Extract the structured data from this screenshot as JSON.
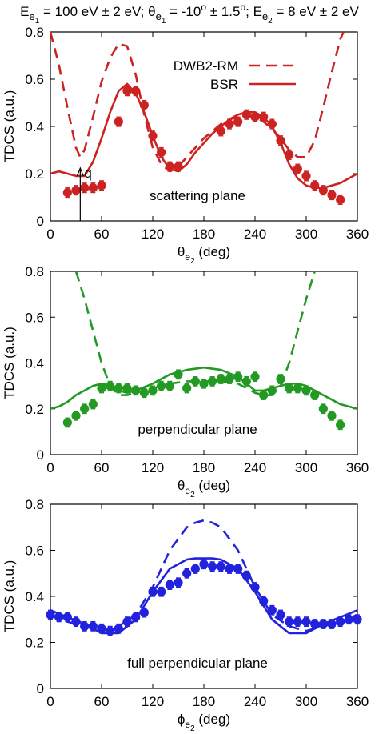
{
  "header": {
    "title_parts": [
      {
        "t": "E"
      },
      {
        "t": "e",
        "sub": true
      },
      {
        "t": "1",
        "subsub": true
      },
      {
        "t": " = 100 eV ± 2 eV; θ"
      },
      {
        "t": "e",
        "sub": true
      },
      {
        "t": "1",
        "subsub": true
      },
      {
        "t": " = -10"
      },
      {
        "t": "o",
        "sup": true
      },
      {
        "t": " ± 1.5"
      },
      {
        "t": "o",
        "sup": true
      },
      {
        "t": "; E"
      },
      {
        "t": "e",
        "sub": true
      },
      {
        "t": "2",
        "subsub": true
      },
      {
        "t": " = 8 eV ± 2 eV"
      }
    ]
  },
  "chart_data": [
    {
      "type": "line",
      "panel": "scattering plane",
      "annotation": "scattering plane",
      "q_label": "q",
      "q_angle": 35,
      "ylabel": "TDCS (a.u.)",
      "xlabel": {
        "main": "θ",
        "sub": "e",
        "subsub": "2",
        "unit": " (deg)"
      },
      "xlim": [
        0,
        360
      ],
      "ylim": [
        0,
        0.8
      ],
      "xticks": [
        0,
        60,
        120,
        180,
        240,
        300,
        360
      ],
      "yticks": [
        0,
        0.2,
        0.4,
        0.6,
        0.8
      ],
      "color": "#cc2222",
      "legend": {
        "placement": "top-right"
      },
      "series": [
        {
          "name": "DWB2-RM",
          "style": "dashed",
          "x": [
            0,
            10,
            20,
            30,
            35,
            40,
            50,
            60,
            70,
            80,
            90,
            100,
            110,
            120,
            130,
            140,
            150,
            160,
            170,
            180,
            190,
            200,
            210,
            220,
            230,
            240,
            250,
            260,
            270,
            280,
            290,
            300,
            310,
            320,
            330,
            340,
            350,
            360
          ],
          "y": [
            0.8,
            0.66,
            0.48,
            0.31,
            0.27,
            0.3,
            0.44,
            0.59,
            0.69,
            0.75,
            0.74,
            0.62,
            0.45,
            0.31,
            0.24,
            0.21,
            0.23,
            0.27,
            0.31,
            0.35,
            0.38,
            0.41,
            0.43,
            0.44,
            0.445,
            0.44,
            0.42,
            0.39,
            0.35,
            0.3,
            0.27,
            0.27,
            0.34,
            0.48,
            0.63,
            0.77,
            0.85,
            0.9
          ]
        },
        {
          "name": "BSR",
          "style": "solid",
          "x": [
            0,
            10,
            20,
            30,
            40,
            50,
            60,
            70,
            80,
            90,
            100,
            110,
            120,
            130,
            140,
            150,
            160,
            170,
            180,
            190,
            200,
            210,
            220,
            230,
            240,
            250,
            260,
            270,
            280,
            290,
            300,
            310,
            320,
            330,
            340,
            350,
            360
          ],
          "y": [
            0.2,
            0.21,
            0.2,
            0.19,
            0.19,
            0.25,
            0.35,
            0.46,
            0.55,
            0.58,
            0.54,
            0.46,
            0.36,
            0.27,
            0.22,
            0.21,
            0.24,
            0.29,
            0.33,
            0.37,
            0.4,
            0.43,
            0.45,
            0.46,
            0.46,
            0.44,
            0.4,
            0.33,
            0.24,
            0.18,
            0.15,
            0.14,
            0.14,
            0.15,
            0.16,
            0.18,
            0.2
          ]
        }
      ],
      "points": {
        "x": [
          20,
          30,
          40,
          50,
          60,
          80,
          90,
          100,
          110,
          120,
          130,
          140,
          150,
          200,
          210,
          220,
          230,
          240,
          250,
          260,
          270,
          280,
          290,
          300,
          310,
          320,
          330,
          340
        ],
        "y": [
          0.12,
          0.13,
          0.14,
          0.14,
          0.15,
          0.42,
          0.55,
          0.55,
          0.49,
          0.36,
          0.29,
          0.23,
          0.23,
          0.38,
          0.41,
          0.42,
          0.45,
          0.44,
          0.44,
          0.41,
          0.34,
          0.28,
          0.22,
          0.19,
          0.15,
          0.13,
          0.11,
          0.09
        ],
        "err": 0.02
      }
    },
    {
      "type": "line",
      "panel": "perpendicular plane",
      "annotation": "perpendicular plane",
      "ylabel": "TDCS (a.u.)",
      "xlabel": {
        "main": "θ",
        "sub": "e",
        "subsub": "2",
        "unit": " (deg)"
      },
      "xlim": [
        0,
        360
      ],
      "ylim": [
        0,
        0.8
      ],
      "xticks": [
        0,
        60,
        120,
        180,
        240,
        300,
        360
      ],
      "yticks": [
        0,
        0.2,
        0.4,
        0.6,
        0.8
      ],
      "color": "#229922",
      "series": [
        {
          "name": "",
          "style": "dashed",
          "x": [
            30,
            40,
            50,
            60,
            70,
            80,
            90,
            100,
            110,
            120,
            140,
            160,
            180,
            200,
            220,
            240,
            250,
            260,
            270,
            280,
            290,
            300,
            310,
            320,
            330
          ],
          "y": [
            0.8,
            0.68,
            0.54,
            0.4,
            0.3,
            0.26,
            0.26,
            0.27,
            0.28,
            0.29,
            0.31,
            0.32,
            0.32,
            0.32,
            0.31,
            0.27,
            0.26,
            0.26,
            0.3,
            0.4,
            0.54,
            0.68,
            0.8,
            0.9,
            1.0
          ]
        },
        {
          "name": "",
          "style": "solid",
          "x": [
            0,
            10,
            20,
            30,
            40,
            50,
            60,
            70,
            80,
            90,
            100,
            120,
            140,
            160,
            180,
            200,
            220,
            230,
            240,
            250,
            260,
            270,
            280,
            290,
            300,
            310,
            320,
            330,
            340,
            350,
            360
          ],
          "y": [
            0.2,
            0.21,
            0.23,
            0.26,
            0.28,
            0.3,
            0.31,
            0.3,
            0.28,
            0.27,
            0.28,
            0.31,
            0.35,
            0.37,
            0.38,
            0.37,
            0.34,
            0.31,
            0.28,
            0.28,
            0.29,
            0.3,
            0.31,
            0.31,
            0.3,
            0.28,
            0.26,
            0.24,
            0.22,
            0.21,
            0.2
          ]
        }
      ],
      "points": {
        "x": [
          20,
          30,
          40,
          50,
          60,
          70,
          80,
          90,
          100,
          110,
          120,
          130,
          140,
          150,
          160,
          170,
          180,
          190,
          200,
          210,
          220,
          230,
          240,
          250,
          260,
          270,
          280,
          290,
          300,
          310,
          320,
          330,
          340
        ],
        "y": [
          0.14,
          0.17,
          0.2,
          0.22,
          0.29,
          0.3,
          0.29,
          0.29,
          0.28,
          0.27,
          0.28,
          0.3,
          0.3,
          0.35,
          0.29,
          0.32,
          0.31,
          0.32,
          0.33,
          0.33,
          0.34,
          0.32,
          0.34,
          0.26,
          0.28,
          0.33,
          0.29,
          0.29,
          0.28,
          0.26,
          0.2,
          0.17,
          0.13
        ],
        "err": 0.02
      }
    },
    {
      "type": "line",
      "panel": "full perpendicular plane",
      "annotation": "full perpendicular plane",
      "ylabel": "TDCS (a.u.)",
      "xlabel": {
        "main": "ϕ",
        "sub": "e",
        "subsub": "2",
        "unit": " (deg)"
      },
      "xlim": [
        0,
        360
      ],
      "ylim": [
        0,
        0.8
      ],
      "xticks": [
        0,
        60,
        120,
        180,
        240,
        300,
        360
      ],
      "yticks": [
        0,
        0.2,
        0.4,
        0.6,
        0.8
      ],
      "color": "#2222dd",
      "series": [
        {
          "name": "",
          "style": "dashed",
          "x": [
            0,
            20,
            40,
            60,
            80,
            100,
            120,
            140,
            160,
            170,
            180,
            190,
            200,
            220,
            240,
            260,
            280,
            300,
            320,
            340,
            360
          ],
          "y": [
            0.32,
            0.29,
            0.27,
            0.25,
            0.27,
            0.32,
            0.44,
            0.6,
            0.7,
            0.72,
            0.73,
            0.72,
            0.7,
            0.6,
            0.44,
            0.32,
            0.27,
            0.25,
            0.27,
            0.29,
            0.32
          ]
        },
        {
          "name": "",
          "style": "solid",
          "x": [
            0,
            20,
            40,
            60,
            80,
            100,
            120,
            140,
            160,
            170,
            180,
            190,
            200,
            220,
            240,
            260,
            280,
            300,
            320,
            340,
            360
          ],
          "y": [
            0.34,
            0.31,
            0.28,
            0.24,
            0.24,
            0.3,
            0.42,
            0.52,
            0.56,
            0.565,
            0.565,
            0.565,
            0.56,
            0.52,
            0.42,
            0.3,
            0.24,
            0.24,
            0.28,
            0.31,
            0.34
          ]
        }
      ],
      "points": {
        "x": [
          0,
          10,
          20,
          30,
          40,
          50,
          60,
          70,
          80,
          90,
          100,
          110,
          120,
          130,
          140,
          150,
          160,
          170,
          180,
          190,
          200,
          210,
          220,
          230,
          240,
          250,
          260,
          270,
          280,
          290,
          300,
          310,
          320,
          330,
          340,
          350,
          360
        ],
        "y": [
          0.32,
          0.31,
          0.31,
          0.29,
          0.27,
          0.27,
          0.26,
          0.25,
          0.26,
          0.29,
          0.31,
          0.33,
          0.42,
          0.42,
          0.45,
          0.46,
          0.5,
          0.52,
          0.54,
          0.53,
          0.53,
          0.52,
          0.52,
          0.49,
          0.44,
          0.38,
          0.34,
          0.32,
          0.29,
          0.29,
          0.29,
          0.28,
          0.28,
          0.28,
          0.29,
          0.3,
          0.3
        ],
        "err": 0.02
      }
    }
  ],
  "legend": {
    "entries": [
      "DWB2-RM",
      "BSR"
    ]
  }
}
